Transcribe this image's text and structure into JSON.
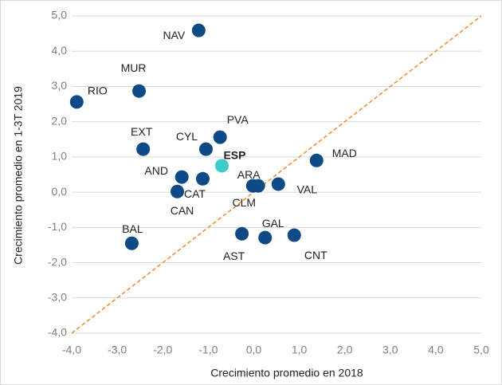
{
  "chart_data": {
    "type": "scatter",
    "x_label": "Crecimiento promedio  en 2018",
    "y_label": "Crecimiento promedio  en 1-3T 2019",
    "xlim": [
      -4.0,
      5.0
    ],
    "ylim": [
      -4.0,
      5.0
    ],
    "xticks": [
      {
        "value": -4,
        "label": "-4,0"
      },
      {
        "value": -3,
        "label": "-3,0"
      },
      {
        "value": -2,
        "label": "-2,0"
      },
      {
        "value": -1,
        "label": "-1,0"
      },
      {
        "value": 0,
        "label": "0,0"
      },
      {
        "value": 1,
        "label": "1,0"
      },
      {
        "value": 2,
        "label": "2,0"
      },
      {
        "value": 3,
        "label": "3,0"
      },
      {
        "value": 4,
        "label": "4,0"
      },
      {
        "value": 5,
        "label": "5,0"
      }
    ],
    "yticks": [
      {
        "value": -4,
        "label": "-4,0"
      },
      {
        "value": -3,
        "label": "-3,0"
      },
      {
        "value": -2,
        "label": "-2,0"
      },
      {
        "value": -1,
        "label": "-1,0"
      },
      {
        "value": 0,
        "label": "0,0"
      },
      {
        "value": 1,
        "label": "1,0"
      },
      {
        "value": 2,
        "label": "2,0"
      },
      {
        "value": 3,
        "label": "3,0"
      },
      {
        "value": 4,
        "label": "4,0"
      },
      {
        "value": 5,
        "label": "5,0"
      }
    ],
    "grid": true,
    "reference_line_color": "#f08a30",
    "points": [
      {
        "label": "NAV",
        "x": -1.21,
        "y": 4.59,
        "color": "#0d4a86"
      },
      {
        "label": "RIO",
        "x": -3.89,
        "y": 2.56,
        "color": "#0d4a86"
      },
      {
        "label": "MUR",
        "x": -2.52,
        "y": 2.87,
        "color": "#0d4a86"
      },
      {
        "label": "EXT",
        "x": -2.43,
        "y": 1.22,
        "color": "#0d4a86"
      },
      {
        "label": "CYL",
        "x": -1.05,
        "y": 1.22,
        "color": "#0d4a86"
      },
      {
        "label": "PVA",
        "x": -0.74,
        "y": 1.56,
        "color": "#0d4a86"
      },
      {
        "label": "ESP",
        "x": -0.7,
        "y": 0.75,
        "color": "#3ccdc8",
        "bold": true
      },
      {
        "label": "MAD",
        "x": 1.38,
        "y": 0.9,
        "color": "#0d4a86"
      },
      {
        "label": "AND",
        "x": -1.58,
        "y": 0.43,
        "color": "#0d4a86"
      },
      {
        "label": "CAT",
        "x": -1.12,
        "y": 0.38,
        "color": "#0d4a86"
      },
      {
        "label": "CAN",
        "x": -1.68,
        "y": 0.02,
        "color": "#0d4a86"
      },
      {
        "label": "ARA",
        "x": 0.1,
        "y": 0.18,
        "color": "#0d4a86"
      },
      {
        "label": "CLM",
        "x": -0.02,
        "y": 0.18,
        "color": "#0d4a86"
      },
      {
        "label": "VAL",
        "x": 0.54,
        "y": 0.23,
        "color": "#0d4a86"
      },
      {
        "label": "BAL",
        "x": -2.68,
        "y": -1.45,
        "color": "#0d4a86"
      },
      {
        "label": "AST",
        "x": -0.26,
        "y": -1.18,
        "color": "#0d4a86"
      },
      {
        "label": "GAL",
        "x": 0.25,
        "y": -1.29,
        "color": "#0d4a86"
      },
      {
        "label": "CNT",
        "x": 0.89,
        "y": -1.22,
        "color": "#0d4a86"
      }
    ]
  }
}
